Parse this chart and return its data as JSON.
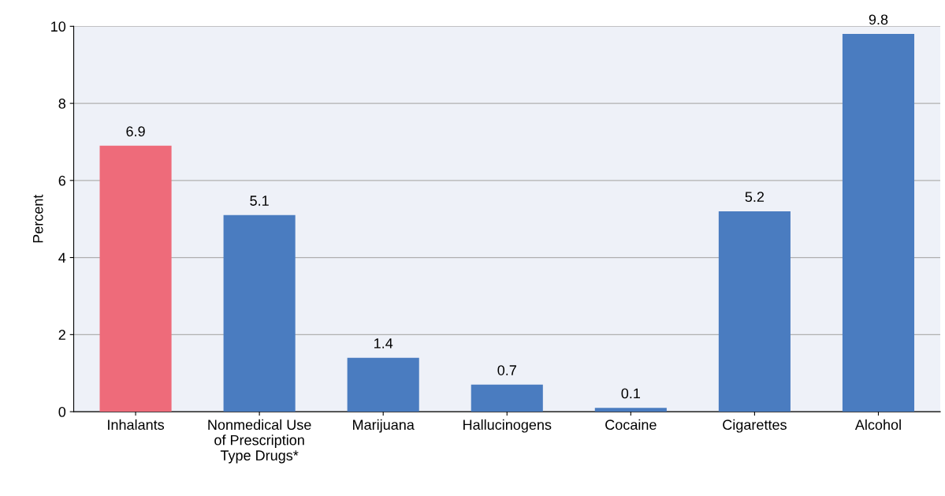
{
  "chart_data": {
    "type": "bar",
    "ylabel": "Percent",
    "categories": [
      "Inhalants",
      "Nonmedical Use\nof Prescription\nType Drugs*",
      "Marijuana",
      "Hallucinogens",
      "Cocaine",
      "Cigarettes",
      "Alcohol"
    ],
    "values": [
      6.9,
      5.1,
      1.4,
      0.7,
      0.1,
      5.2,
      9.8
    ],
    "colors": [
      "#ee6b7a",
      "#4a7cc0",
      "#4a7cc0",
      "#4a7cc0",
      "#4a7cc0",
      "#4a7cc0",
      "#4a7cc0"
    ],
    "ylim": [
      0,
      10
    ],
    "yticks": [
      0,
      2,
      4,
      6,
      8,
      10
    ],
    "grid": "y",
    "data_labels": true
  }
}
